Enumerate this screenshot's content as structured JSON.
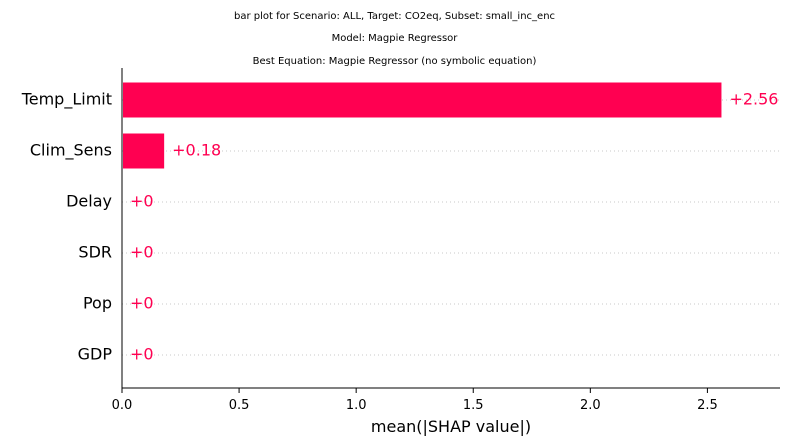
{
  "chart_data": {
    "type": "bar",
    "orientation": "horizontal",
    "title_lines": [
      "bar plot for Scenario: ALL, Target: CO2eq, Subset: small_inc_enc",
      "Model: Magpie Regressor",
      "Best Equation: Magpie Regressor (no symbolic equation)"
    ],
    "categories": [
      "Temp_Limit",
      "Clim_Sens",
      "Delay",
      "SDR",
      "Pop",
      "GDP"
    ],
    "values": [
      2.56,
      0.18,
      0,
      0,
      0,
      0
    ],
    "data_labels": [
      "+2.56",
      "+0.18",
      "+0",
      "+0",
      "+0",
      "+0"
    ],
    "xlabel": "mean(|SHAP value|)",
    "ylabel": "",
    "xlim": [
      0,
      2.81
    ],
    "xticks": [
      0.0,
      0.5,
      1.0,
      1.5,
      2.0,
      2.5
    ],
    "xtick_labels": [
      "0.0",
      "0.5",
      "1.0",
      "1.5",
      "2.0",
      "2.5"
    ],
    "grid": "dotted horizontal guide lines per category",
    "colors": {
      "bar": "#ff0051",
      "data_label": "#ff0051",
      "gridline": "#c8c8c8",
      "axis": "#000000"
    }
  }
}
